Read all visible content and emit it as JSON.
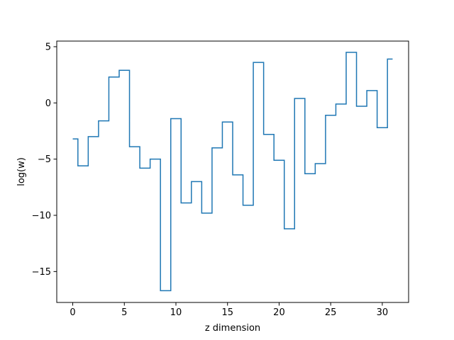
{
  "chart_data": {
    "type": "line",
    "drawstyle": "steps-mid",
    "xlabel": "z dimension",
    "ylabel": "log(w)",
    "xlim": [
      -1.55,
      32.55
    ],
    "ylim": [
      -17.75,
      5.5
    ],
    "xticks": [
      0,
      5,
      10,
      15,
      20,
      25,
      30
    ],
    "yticks": [
      -15,
      -10,
      -5,
      0,
      5
    ],
    "xtick_labels": [
      "0",
      "5",
      "10",
      "15",
      "20",
      "25",
      "30"
    ],
    "ytick_labels": [
      "−15",
      "−10",
      "−5",
      "0",
      "5"
    ],
    "grid": false,
    "series": [
      {
        "color": "#1f77b4",
        "x": [
          0,
          1,
          2,
          3,
          4,
          5,
          6,
          7,
          8,
          9,
          10,
          11,
          12,
          13,
          14,
          15,
          16,
          17,
          18,
          19,
          20,
          21,
          22,
          23,
          24,
          25,
          26,
          27,
          28,
          29,
          30,
          31
        ],
        "y": [
          -3.2,
          -5.6,
          -3.0,
          -1.6,
          2.3,
          2.9,
          -3.9,
          -5.8,
          -5.0,
          -16.7,
          -1.4,
          -8.9,
          -7.0,
          -9.8,
          -4.0,
          -1.7,
          -6.4,
          -9.1,
          3.6,
          -2.8,
          -5.1,
          -11.2,
          0.4,
          -6.3,
          -5.4,
          -1.1,
          -0.1,
          4.5,
          -0.3,
          1.1,
          -2.2,
          3.9
        ]
      }
    ]
  }
}
